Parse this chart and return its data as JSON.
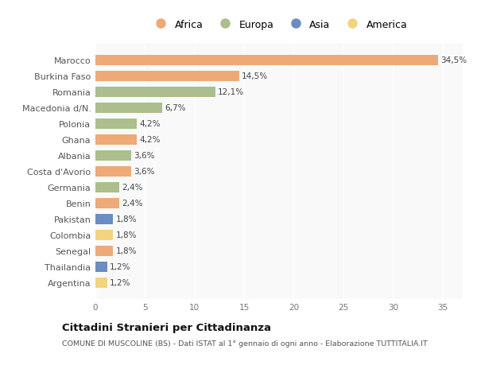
{
  "countries": [
    "Marocco",
    "Burkina Faso",
    "Romania",
    "Macedonia d/N.",
    "Polonia",
    "Ghana",
    "Albania",
    "Costa d'Avorio",
    "Germania",
    "Benin",
    "Pakistan",
    "Colombia",
    "Senegal",
    "Thailandia",
    "Argentina"
  ],
  "values": [
    34.5,
    14.5,
    12.1,
    6.7,
    4.2,
    4.2,
    3.6,
    3.6,
    2.4,
    2.4,
    1.8,
    1.8,
    1.8,
    1.2,
    1.2
  ],
  "continents": [
    "Africa",
    "Africa",
    "Europa",
    "Europa",
    "Europa",
    "Africa",
    "Europa",
    "Africa",
    "Europa",
    "Africa",
    "Asia",
    "America",
    "Africa",
    "Asia",
    "America"
  ],
  "labels": [
    "34,5%",
    "14,5%",
    "12,1%",
    "6,7%",
    "4,2%",
    "4,2%",
    "3,6%",
    "3,6%",
    "2,4%",
    "2,4%",
    "1,8%",
    "1,8%",
    "1,8%",
    "1,2%",
    "1,2%"
  ],
  "colors": {
    "Africa": "#EDAA78",
    "Europa": "#ABBE8C",
    "Asia": "#6B8DBF",
    "America": "#F2D47E"
  },
  "legend_order": [
    "Africa",
    "Europa",
    "Asia",
    "America"
  ],
  "xlim": [
    0,
    37
  ],
  "xticks": [
    0,
    5,
    10,
    15,
    20,
    25,
    30,
    35
  ],
  "title": "Cittadini Stranieri per Cittadinanza",
  "subtitle": "COMUNE DI MUSCOLINE (BS) - Dati ISTAT al 1° gennaio di ogni anno - Elaborazione TUTTITALIA.IT",
  "bg_color": "#ffffff",
  "plot_bg_color": "#f9f9f9",
  "grid_color": "#e8e8e8"
}
